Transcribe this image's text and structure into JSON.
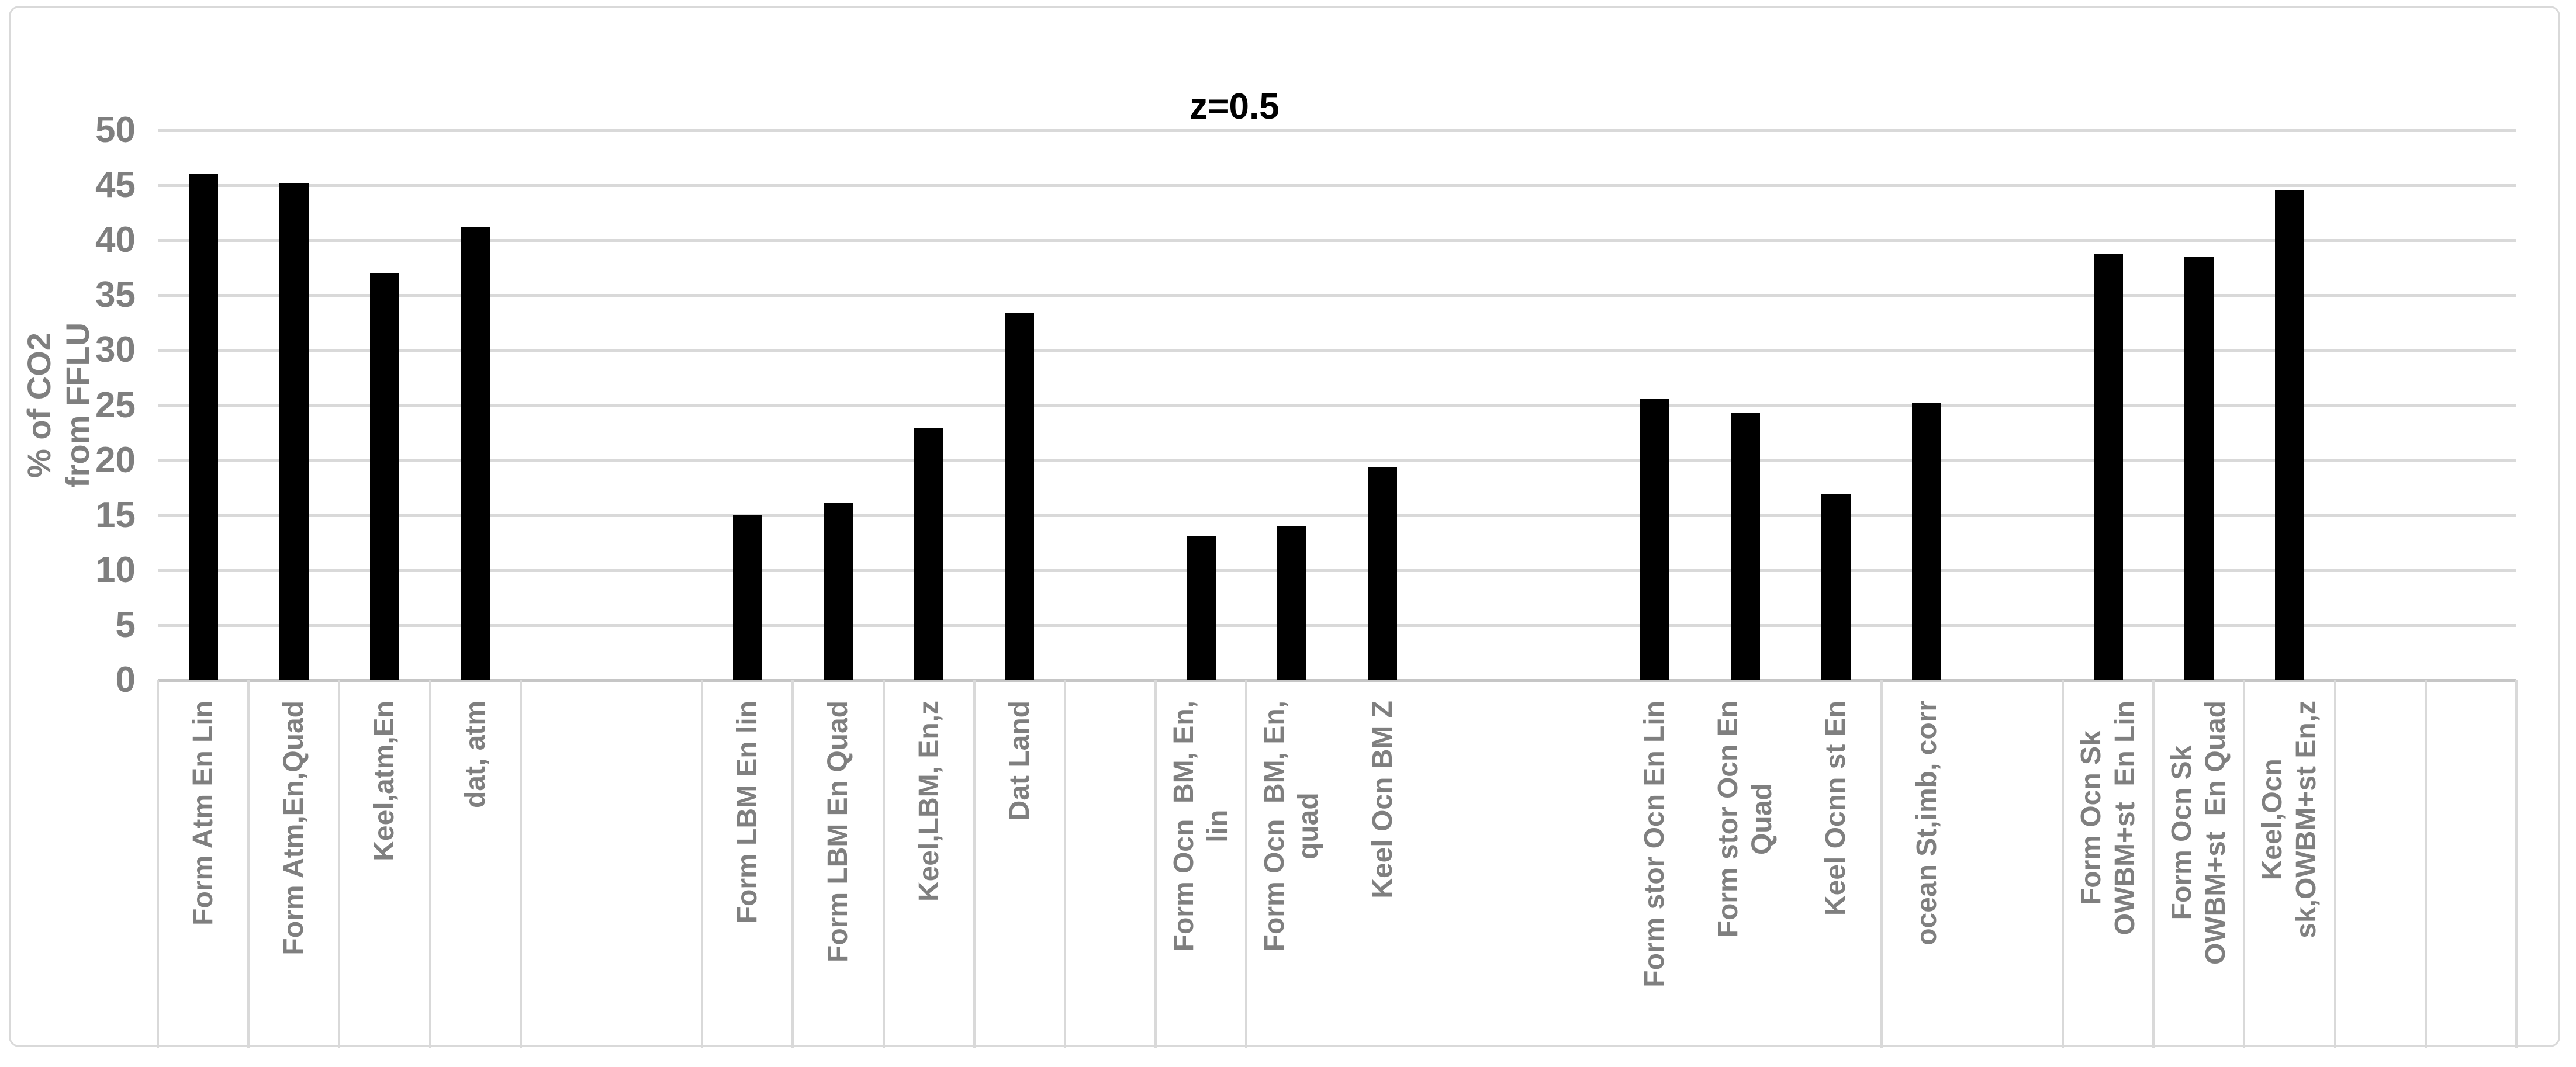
{
  "chart_data": {
    "type": "bar",
    "title": "z=0.5",
    "ylabel_lines": [
      "% of CO2",
      "from FFLU"
    ],
    "xlabel": "",
    "ylim": [
      0,
      50
    ],
    "ytick_step": 5,
    "yticks": [
      0,
      5,
      10,
      15,
      20,
      25,
      30,
      35,
      40,
      45,
      50
    ],
    "grid": true,
    "legend": null,
    "num_slots": 26,
    "bars": [
      {
        "slot": 0,
        "label": "Form Atm En Lin",
        "value": 46.0
      },
      {
        "slot": 1,
        "label": "Form Atm,En,Quad",
        "value": 45.2
      },
      {
        "slot": 2,
        "label": "Keel,atm,En",
        "value": 37.0
      },
      {
        "slot": 3,
        "label": "dat, atm",
        "value": 41.2
      },
      {
        "slot": 6,
        "label": "Form LBM En lin",
        "value": 15.0
      },
      {
        "slot": 7,
        "label": "Form LBM En Quad",
        "value": 16.1
      },
      {
        "slot": 8,
        "label": "Keel,LBM, En,z",
        "value": 22.9
      },
      {
        "slot": 9,
        "label": "Dat Land",
        "value": 33.4
      },
      {
        "slot": 11,
        "label": "Form Ocn  BM, En,\nlin",
        "value": 13.1
      },
      {
        "slot": 12,
        "label": "Form Ocn  BM, En,\nquad",
        "value": 14.0
      },
      {
        "slot": 13,
        "label": "Keel Ocn BM Z",
        "value": 19.4
      },
      {
        "slot": 16,
        "label": "Form stor Ocn En Lin",
        "value": 25.6
      },
      {
        "slot": 17,
        "label": "Form stor Ocn En\nQuad",
        "value": 24.3
      },
      {
        "slot": 18,
        "label": "Keel Ocnn st En",
        "value": 16.9
      },
      {
        "slot": 19,
        "label": "ocean St,imb, corr",
        "value": 25.2
      },
      {
        "slot": 21,
        "label": "Form Ocn Sk\nOWBM+st  En Lin",
        "value": 38.8
      },
      {
        "slot": 22,
        "label": "Form Ocn Sk\nOWBM+st  En Quad",
        "value": 38.5
      },
      {
        "slot": 23,
        "label": "Keel,Ocn\nsk,OWBM+st En,z",
        "value": 44.6
      }
    ],
    "cell_separator_boundaries": [
      0,
      1,
      2,
      3,
      4,
      6,
      7,
      8,
      9,
      10,
      11,
      12,
      19,
      21,
      22,
      23,
      24,
      25,
      26
    ],
    "colors": {
      "bar": "#000000",
      "axis_text": "#7f7f7f",
      "title_text": "#000000",
      "gridline": "#d9d9d9",
      "axis_line": "#c6c6c6",
      "cell_border": "#d9d9d9",
      "figure_border": "#d9d9d9",
      "background": "#ffffff"
    }
  }
}
